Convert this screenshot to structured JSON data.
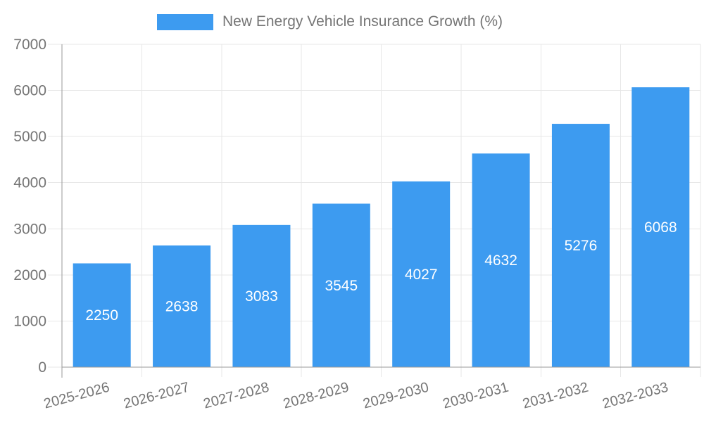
{
  "chart_data": {
    "type": "bar",
    "title": "",
    "legend": "New Energy Vehicle Insurance Growth (%)",
    "legend_position": "top-center",
    "categories": [
      "2025-2026",
      "2026-2027",
      "2027-2028",
      "2028-2029",
      "2029-2030",
      "2030-2031",
      "2031-2032",
      "2032-2033"
    ],
    "values": [
      2250,
      2638,
      3083,
      3545,
      4027,
      4632,
      5276,
      6068
    ],
    "xlabel": "",
    "ylabel": "",
    "ylim": [
      0,
      7000
    ],
    "ytick_step": 1000,
    "ytick_labels": [
      "0",
      "1000",
      "2000",
      "3000",
      "4000",
      "5000",
      "6000",
      "7000"
    ],
    "grid": true,
    "x_label_rotation_deg": -15,
    "bar_value_labels_inside": true
  },
  "colors": {
    "bar": "#3D9BF0",
    "axis": "#999999",
    "grid": "#E7E7E7",
    "tick_label": "#757575",
    "legend_text": "#757575",
    "value_label": "#FFFFFF",
    "background": "#FFFFFF"
  }
}
